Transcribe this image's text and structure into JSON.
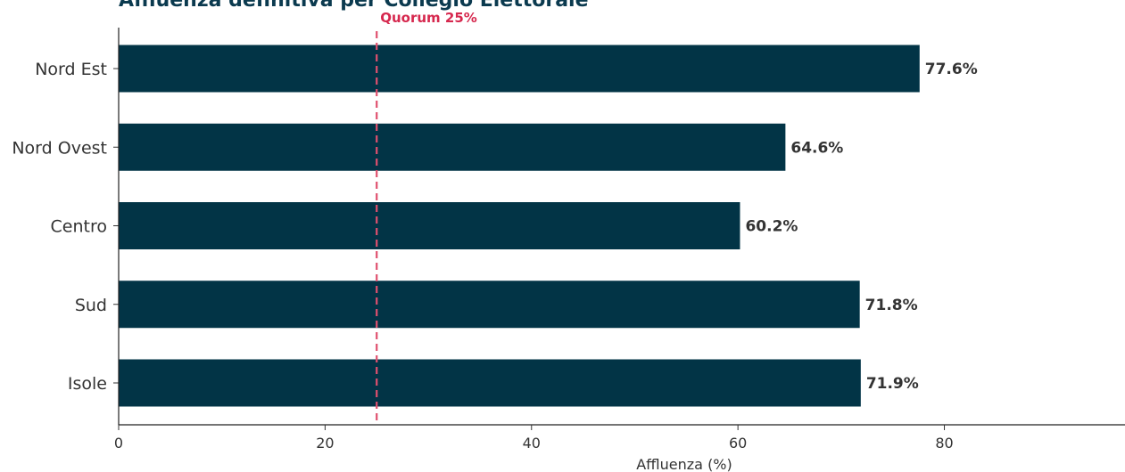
{
  "chart_data": {
    "type": "bar",
    "orientation": "horizontal",
    "title": "Affluenza definitiva per Collegio Elettorale",
    "xlabel": "Affluenza (%)",
    "ylabel": "",
    "categories": [
      "Nord Est",
      "Nord Ovest",
      "Centro",
      "Sud",
      "Isole"
    ],
    "values": [
      77.6,
      64.6,
      60.2,
      71.8,
      71.9
    ],
    "value_labels": [
      "77.6%",
      "64.6%",
      "60.2%",
      "71.8%",
      "71.9%"
    ],
    "xlim": [
      0,
      97.5
    ],
    "xticks": [
      0,
      20,
      40,
      60,
      80
    ],
    "grid": false,
    "bar_color": "#023446",
    "reference_line": {
      "value": 25,
      "label": "Quorum 25%",
      "color": "#e0506e",
      "style": "dashed"
    }
  }
}
